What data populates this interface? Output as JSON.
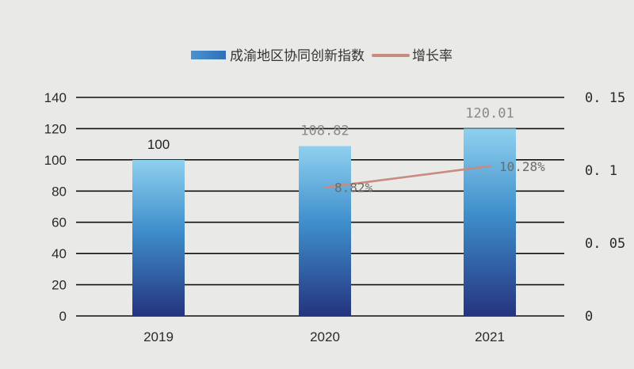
{
  "chart_data": {
    "type": "bar",
    "categories": [
      "2019",
      "2020",
      "2021"
    ],
    "series": [
      {
        "name": "成渝地区协同创新指数",
        "values": [
          100,
          108.82,
          120.01
        ],
        "labels": [
          "100",
          "108.82",
          "120.01"
        ],
        "axis": "left",
        "color": "#2f6fb8"
      },
      {
        "name": "增长率",
        "type": "line",
        "values": [
          null,
          0.0882,
          0.1028
        ],
        "labels": [
          "",
          "8.82%",
          "10.28%"
        ],
        "axis": "right",
        "color": "#c98a80"
      }
    ],
    "ylim": [
      0,
      140
    ],
    "yticks": [
      "0",
      "20",
      "40",
      "60",
      "80",
      "100",
      "120",
      "140"
    ],
    "y2lim": [
      0,
      0.15
    ],
    "y2ticks": [
      "0",
      "0.05",
      "0.1",
      "0.15"
    ],
    "grid": true,
    "legend": "top-center"
  }
}
